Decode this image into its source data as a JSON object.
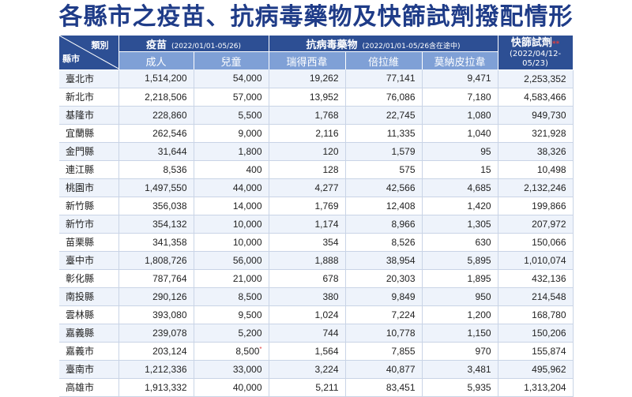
{
  "title": "各縣市之疫苗、抗病毒藥物及快篩試劑撥配情形",
  "header": {
    "corner_top": "類別",
    "corner_bottom": "縣市",
    "vaccine_label": "疫苗",
    "vaccine_dates": "(2022/01/01-05/26)",
    "antiviral_label": "抗病毒藥物",
    "antiviral_dates": "(2022/01/01-05/26含在途中)",
    "rapid_label": "快篩試劑",
    "rapid_mark": "**",
    "rapid_dates_1": "(2022/04/12-",
    "rapid_dates_2": "05/23)",
    "adult": "成人",
    "child": "兒童",
    "remdesivir": "瑞得西韋",
    "paxlovid": "倍拉維",
    "molnupiravir": "莫納皮拉韋"
  },
  "rows": [
    {
      "city": "臺北市",
      "adult": "1,514,200",
      "child": "54,000",
      "remdesivir": "19,262",
      "paxlovid": "77,141",
      "molnupiravir": "9,471",
      "rapid": "2,253,352",
      "mark": ""
    },
    {
      "city": "新北市",
      "adult": "2,218,506",
      "child": "57,000",
      "remdesivir": "13,952",
      "paxlovid": "76,086",
      "molnupiravir": "7,180",
      "rapid": "4,583,466",
      "mark": ""
    },
    {
      "city": "基隆市",
      "adult": "228,860",
      "child": "5,500",
      "remdesivir": "1,768",
      "paxlovid": "22,745",
      "molnupiravir": "1,080",
      "rapid": "949,730",
      "mark": ""
    },
    {
      "city": "宜蘭縣",
      "adult": "262,546",
      "child": "9,000",
      "remdesivir": "2,116",
      "paxlovid": "11,335",
      "molnupiravir": "1,040",
      "rapid": "321,928",
      "mark": ""
    },
    {
      "city": "金門縣",
      "adult": "31,644",
      "child": "1,800",
      "remdesivir": "120",
      "paxlovid": "1,579",
      "molnupiravir": "95",
      "rapid": "38,326",
      "mark": ""
    },
    {
      "city": "連江縣",
      "adult": "8,536",
      "child": "400",
      "remdesivir": "128",
      "paxlovid": "575",
      "molnupiravir": "15",
      "rapid": "10,498",
      "mark": ""
    },
    {
      "city": "桃園市",
      "adult": "1,497,550",
      "child": "44,000",
      "remdesivir": "4,277",
      "paxlovid": "42,566",
      "molnupiravir": "4,685",
      "rapid": "2,132,246",
      "mark": ""
    },
    {
      "city": "新竹縣",
      "adult": "356,038",
      "child": "14,000",
      "remdesivir": "1,769",
      "paxlovid": "12,408",
      "molnupiravir": "1,420",
      "rapid": "199,866",
      "mark": ""
    },
    {
      "city": "新竹市",
      "adult": "354,132",
      "child": "10,000",
      "remdesivir": "1,174",
      "paxlovid": "8,966",
      "molnupiravir": "1,305",
      "rapid": "207,972",
      "mark": ""
    },
    {
      "city": "苗栗縣",
      "adult": "341,358",
      "child": "10,000",
      "remdesivir": "354",
      "paxlovid": "8,526",
      "molnupiravir": "630",
      "rapid": "150,066",
      "mark": ""
    },
    {
      "city": "臺中市",
      "adult": "1,808,726",
      "child": "56,000",
      "remdesivir": "1,888",
      "paxlovid": "38,954",
      "molnupiravir": "5,895",
      "rapid": "1,010,074",
      "mark": ""
    },
    {
      "city": "彰化縣",
      "adult": "787,764",
      "child": "21,000",
      "remdesivir": "678",
      "paxlovid": "20,303",
      "molnupiravir": "1,895",
      "rapid": "432,136",
      "mark": ""
    },
    {
      "city": "南投縣",
      "adult": "290,126",
      "child": "8,500",
      "remdesivir": "380",
      "paxlovid": "9,849",
      "molnupiravir": "950",
      "rapid": "214,548",
      "mark": ""
    },
    {
      "city": "雲林縣",
      "adult": "393,080",
      "child": "9,500",
      "remdesivir": "1,024",
      "paxlovid": "7,224",
      "molnupiravir": "1,200",
      "rapid": "168,780",
      "mark": ""
    },
    {
      "city": "嘉義縣",
      "adult": "239,078",
      "child": "5,200",
      "remdesivir": "744",
      "paxlovid": "10,778",
      "molnupiravir": "1,150",
      "rapid": "150,206",
      "mark": ""
    },
    {
      "city": "嘉義市",
      "adult": "203,124",
      "child": "8,500",
      "remdesivir": "1,564",
      "paxlovid": "7,855",
      "molnupiravir": "970",
      "rapid": "155,874",
      "mark": "*"
    },
    {
      "city": "臺南市",
      "adult": "1,212,336",
      "child": "33,000",
      "remdesivir": "3,224",
      "paxlovid": "40,877",
      "molnupiravir": "3,481",
      "rapid": "495,962",
      "mark": ""
    },
    {
      "city": "高雄市",
      "adult": "1,913,332",
      "child": "40,000",
      "remdesivir": "5,211",
      "paxlovid": "83,451",
      "molnupiravir": "5,935",
      "rapid": "1,313,204",
      "mark": ""
    }
  ]
}
